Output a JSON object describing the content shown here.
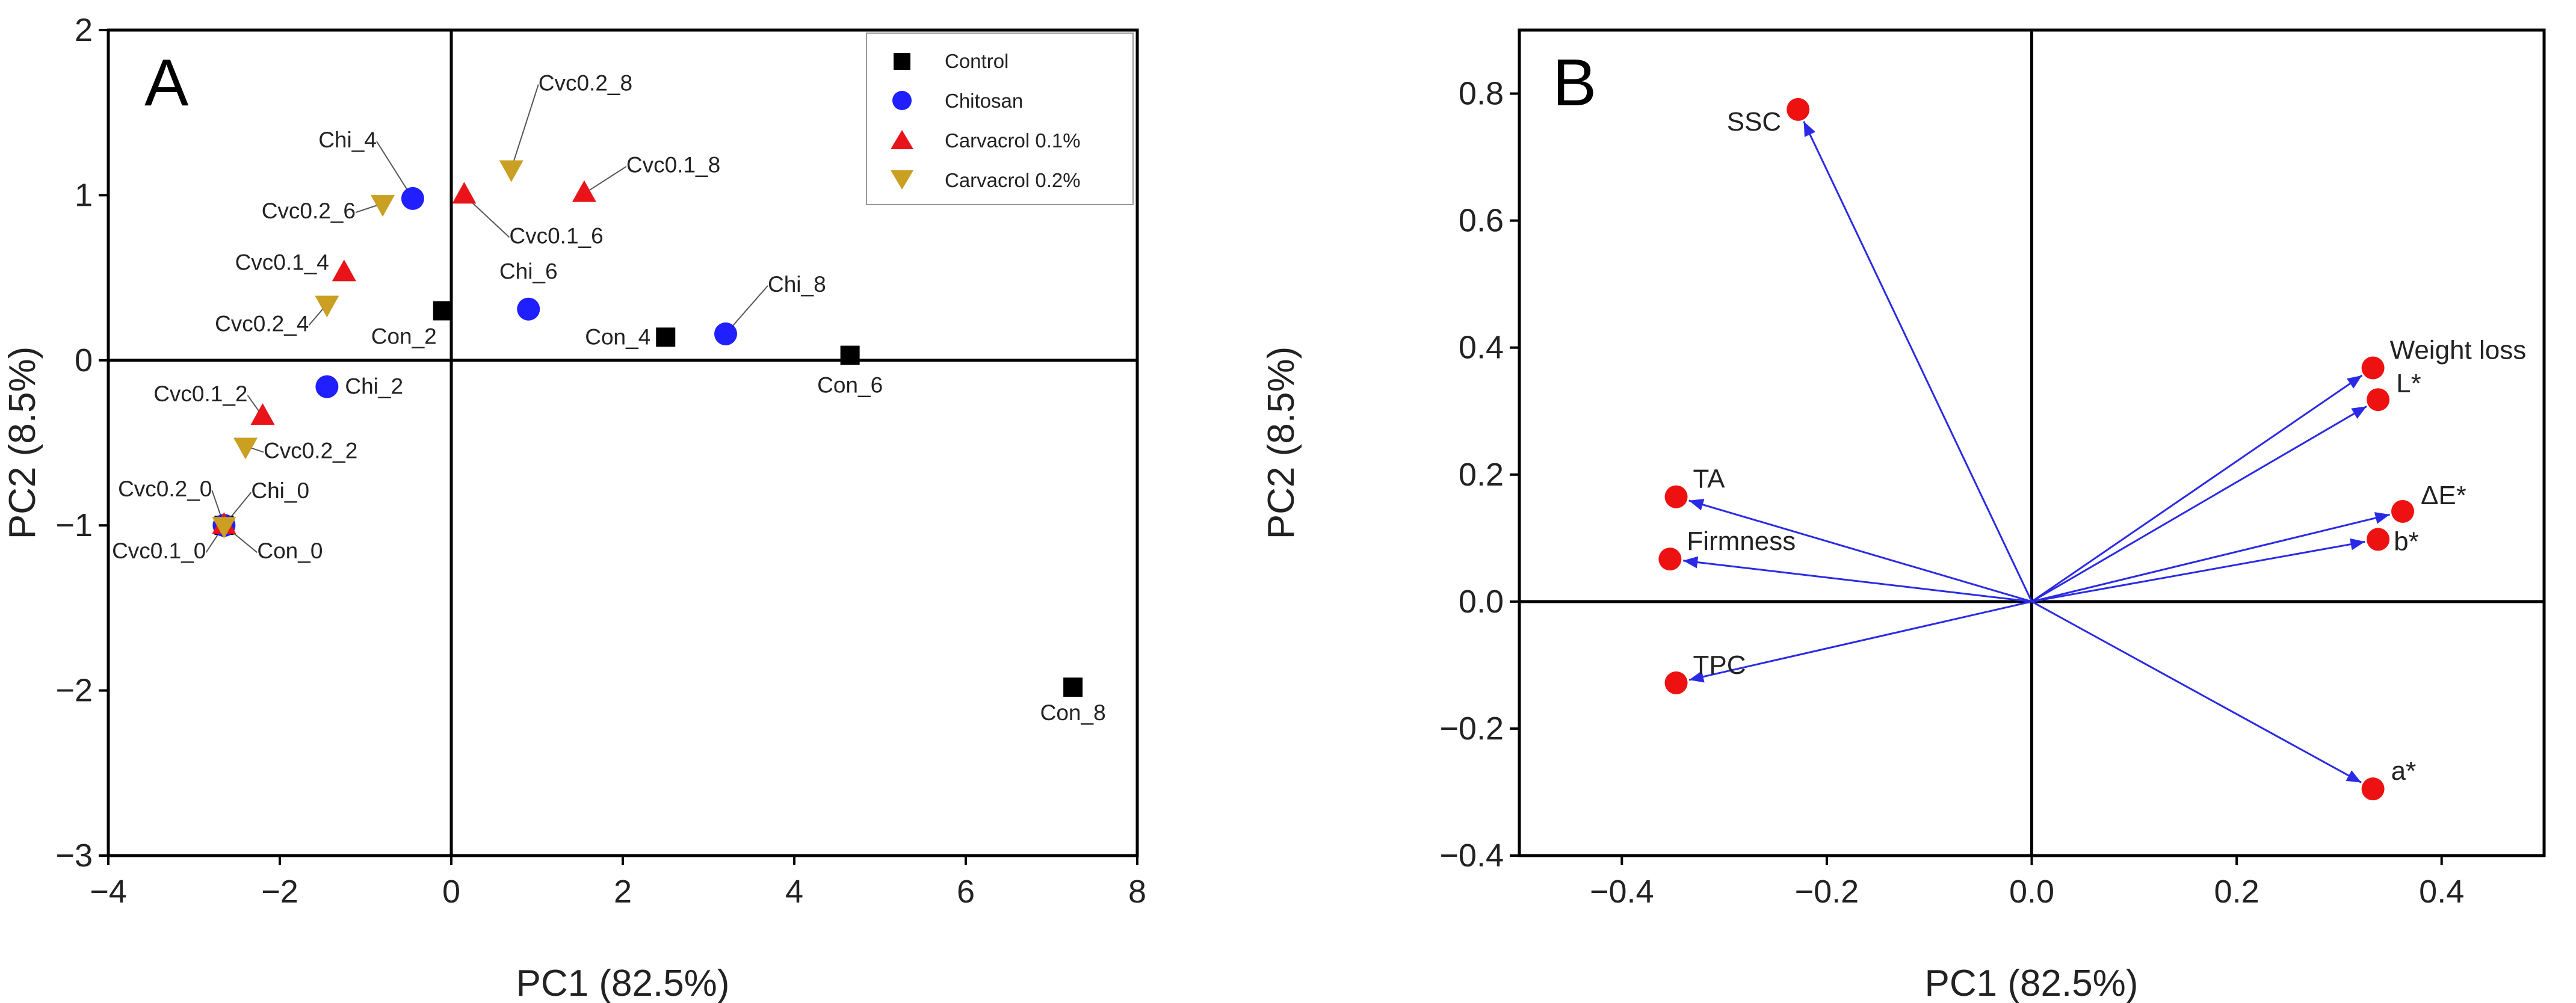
{
  "chart_data": [
    {
      "type": "scatter",
      "panel_letter": "A",
      "xlabel": "PC1 (82.5%)",
      "ylabel": "PC2 (8.5%)",
      "xlim": [
        -4,
        8
      ],
      "ylim": [
        -3,
        2
      ],
      "xticks": [
        -4,
        -2,
        0,
        2,
        4,
        6,
        8
      ],
      "yticks": [
        -3,
        -2,
        -1,
        0,
        1,
        2
      ],
      "legend_position": "top-right",
      "series": [
        {
          "name": "Control",
          "marker": "square",
          "color": "#000000",
          "points": [
            {
              "label": "Con_0",
              "x": -2.65,
              "y": -1.0
            },
            {
              "label": "Con_2",
              "x": -0.1,
              "y": 0.3
            },
            {
              "label": "Con_4",
              "x": 2.5,
              "y": 0.14
            },
            {
              "label": "Con_6",
              "x": 4.65,
              "y": 0.03
            },
            {
              "label": "Con_8",
              "x": 7.25,
              "y": -1.98
            }
          ]
        },
        {
          "name": "Chitosan",
          "marker": "circle",
          "color": "#1f1fff",
          "points": [
            {
              "label": "Chi_0",
              "x": -2.65,
              "y": -1.0
            },
            {
              "label": "Chi_2",
              "x": -1.45,
              "y": -0.16
            },
            {
              "label": "Chi_4",
              "x": -0.45,
              "y": 0.98
            },
            {
              "label": "Chi_6",
              "x": 0.9,
              "y": 0.31
            },
            {
              "label": "Chi_8",
              "x": 3.2,
              "y": 0.16
            }
          ]
        },
        {
          "name": "Carvacrol 0.1%",
          "marker": "triangle-up",
          "color": "#e8141a",
          "points": [
            {
              "label": "Cvc0.1_0",
              "x": -2.65,
              "y": -1.0
            },
            {
              "label": "Cvc0.1_2",
              "x": -2.2,
              "y": -0.34
            },
            {
              "label": "Cvc0.1_4",
              "x": -1.25,
              "y": 0.53
            },
            {
              "label": "Cvc0.1_6",
              "x": 0.15,
              "y": 1.0
            },
            {
              "label": "Cvc0.1_8",
              "x": 1.55,
              "y": 1.01
            }
          ]
        },
        {
          "name": "Carvacrol 0.2%",
          "marker": "triangle-down",
          "color": "#c9a021",
          "points": [
            {
              "label": "Cvc0.2_0",
              "x": -2.65,
              "y": -1.0
            },
            {
              "label": "Cvc0.2_2",
              "x": -2.4,
              "y": -0.52
            },
            {
              "label": "Cvc0.2_4",
              "x": -1.45,
              "y": 0.34
            },
            {
              "label": "Cvc0.2_6",
              "x": -0.8,
              "y": 0.95
            },
            {
              "label": "Cvc0.2_8",
              "x": 0.7,
              "y": 1.16
            }
          ]
        }
      ]
    },
    {
      "type": "biplot-loadings",
      "panel_letter": "B",
      "xlabel": "PC1 (82.5%)",
      "ylabel": "PC2 (8.5%)",
      "xlim": [
        -0.5,
        0.5
      ],
      "ylim": [
        -0.4,
        0.9
      ],
      "xticks": [
        "-0.4",
        "-0.2",
        "0.0",
        "0.2",
        "0.4"
      ],
      "yticks": [
        "-0.4",
        "-0.2",
        "0.0",
        "0.2",
        "0.4",
        "0.6",
        "0.8"
      ],
      "point_color": "#ee1111",
      "arrow_color": "#2a2ae6",
      "variables": [
        {
          "name": "SSC",
          "x": -0.228,
          "y": 0.775
        },
        {
          "name": "Weight loss",
          "x": 0.333,
          "y": 0.368
        },
        {
          "name": "L*",
          "x": 0.338,
          "y": 0.318
        },
        {
          "name": "ΔE*",
          "x": 0.362,
          "y": 0.142
        },
        {
          "name": "b*",
          "x": 0.338,
          "y": 0.098
        },
        {
          "name": "TA",
          "x": -0.347,
          "y": 0.165
        },
        {
          "name": "Firmness",
          "x": -0.353,
          "y": 0.067
        },
        {
          "name": "TPC",
          "x": -0.347,
          "y": -0.128
        },
        {
          "name": "a*",
          "x": 0.333,
          "y": -0.295
        }
      ]
    }
  ]
}
